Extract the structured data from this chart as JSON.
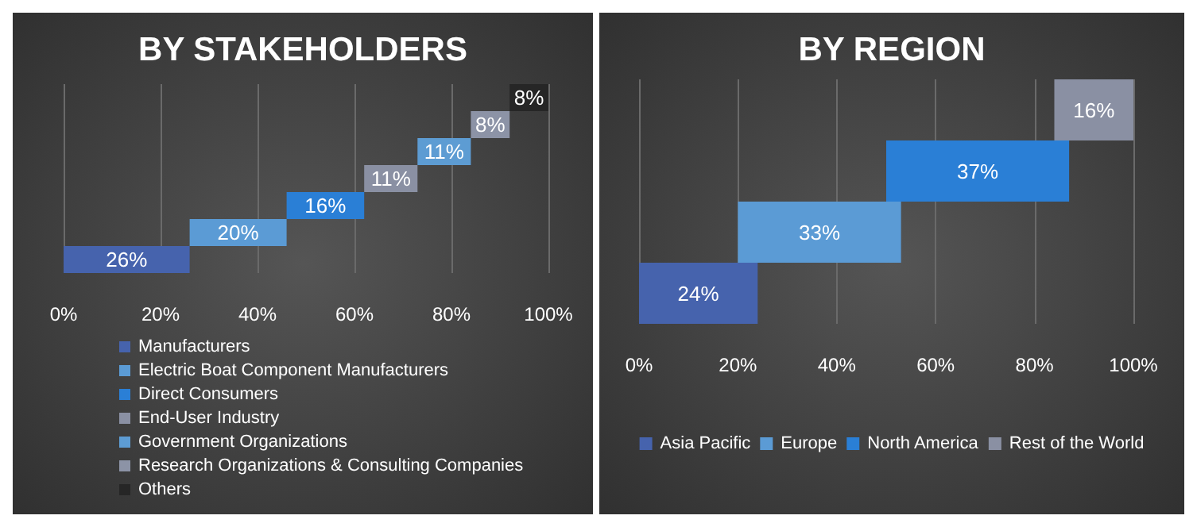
{
  "chart_data": [
    {
      "type": "bar",
      "title": "BY STAKEHOLDERS",
      "orientation": "horizontal",
      "categories": [
        null,
        null,
        null,
        null,
        null,
        null,
        null
      ],
      "xlim": [
        0,
        100
      ],
      "xticks": [
        {
          "value": 0,
          "label": "0%"
        },
        {
          "value": 20,
          "label": "20%"
        },
        {
          "value": 40,
          "label": "40%"
        },
        {
          "value": 60,
          "label": "60%"
        },
        {
          "value": 80,
          "label": "80%"
        },
        {
          "value": 100,
          "label": "100%"
        }
      ],
      "grid": "x",
      "legend": "bottom left",
      "series": [
        {
          "name": "Manufacturers",
          "color": "#4663ad",
          "values": [
            null,
            null,
            null,
            null,
            null,
            null,
            26
          ],
          "base": [
            null,
            null,
            null,
            null,
            null,
            null,
            0
          ],
          "value_labels": [
            null,
            null,
            null,
            null,
            null,
            null,
            "26%"
          ]
        },
        {
          "name": "Electric Boat Component Manufacturers",
          "color": "#5b9bd5",
          "values": [
            null,
            null,
            null,
            null,
            null,
            20,
            null
          ],
          "base": [
            null,
            null,
            null,
            null,
            null,
            26,
            null
          ],
          "value_labels": [
            null,
            null,
            null,
            null,
            null,
            "20%",
            null
          ]
        },
        {
          "name": "Direct Consumers",
          "color": "#2a7fd6",
          "values": [
            null,
            null,
            null,
            null,
            16,
            null,
            null
          ],
          "base": [
            null,
            null,
            null,
            null,
            46,
            null,
            null
          ],
          "value_labels": [
            null,
            null,
            null,
            null,
            "16%",
            null,
            null
          ]
        },
        {
          "name": "End-User Industry",
          "color": "#8a90a3",
          "values": [
            null,
            null,
            null,
            11,
            null,
            null,
            null
          ],
          "base": [
            null,
            null,
            null,
            62,
            null,
            null,
            null
          ],
          "value_labels": [
            null,
            null,
            null,
            "11%",
            null,
            null,
            null
          ]
        },
        {
          "name": "Government Organizations",
          "color": "#5d9cd3",
          "values": [
            null,
            null,
            11,
            null,
            null,
            null,
            null
          ],
          "base": [
            null,
            null,
            73,
            null,
            null,
            null,
            null
          ],
          "value_labels": [
            null,
            null,
            "11%",
            null,
            null,
            null,
            null
          ]
        },
        {
          "name": "Research Organizations & Consulting Companies",
          "color": "#8c93a6",
          "values": [
            null,
            8,
            null,
            null,
            null,
            null,
            null
          ],
          "base": [
            null,
            84,
            null,
            null,
            null,
            null,
            null
          ],
          "value_labels": [
            null,
            "8%",
            null,
            null,
            null,
            null,
            null
          ]
        },
        {
          "name": "Others",
          "color": "#262626",
          "values": [
            8,
            null,
            null,
            null,
            null,
            null,
            null
          ],
          "base": [
            92,
            null,
            null,
            null,
            null,
            null,
            null
          ],
          "value_labels": [
            "8%",
            null,
            null,
            null,
            null,
            null,
            null
          ]
        }
      ]
    },
    {
      "type": "bar",
      "title": "BY REGION",
      "orientation": "horizontal",
      "categories": [
        null,
        null,
        null,
        null
      ],
      "xlim": [
        0,
        100
      ],
      "xticks": [
        {
          "value": 0,
          "label": "0%"
        },
        {
          "value": 20,
          "label": "20%"
        },
        {
          "value": 40,
          "label": "40%"
        },
        {
          "value": 60,
          "label": "60%"
        },
        {
          "value": 80,
          "label": "80%"
        },
        {
          "value": 100,
          "label": "100%"
        }
      ],
      "grid": "x",
      "legend": "bottom",
      "series": [
        {
          "name": "Asia Pacific",
          "color": "#4663ad",
          "values": [
            null,
            null,
            null,
            24
          ],
          "base": [
            null,
            null,
            null,
            0
          ],
          "value_labels": [
            null,
            null,
            null,
            "24%"
          ]
        },
        {
          "name": "Europe",
          "color": "#5b9bd5",
          "values": [
            null,
            null,
            33,
            null
          ],
          "base": [
            null,
            null,
            20,
            null
          ],
          "value_labels": [
            null,
            null,
            "33%",
            null
          ]
        },
        {
          "name": "North America",
          "color": "#2a7fd6",
          "values": [
            null,
            37,
            null,
            null
          ],
          "base": [
            null,
            50,
            null,
            null
          ],
          "value_labels": [
            null,
            "37%",
            null,
            null
          ]
        },
        {
          "name": "Rest of the World",
          "color": "#8a90a3",
          "values": [
            16,
            null,
            null,
            null
          ],
          "base": [
            84,
            null,
            null,
            null
          ],
          "value_labels": [
            "16%",
            null,
            null,
            null
          ]
        }
      ]
    }
  ]
}
